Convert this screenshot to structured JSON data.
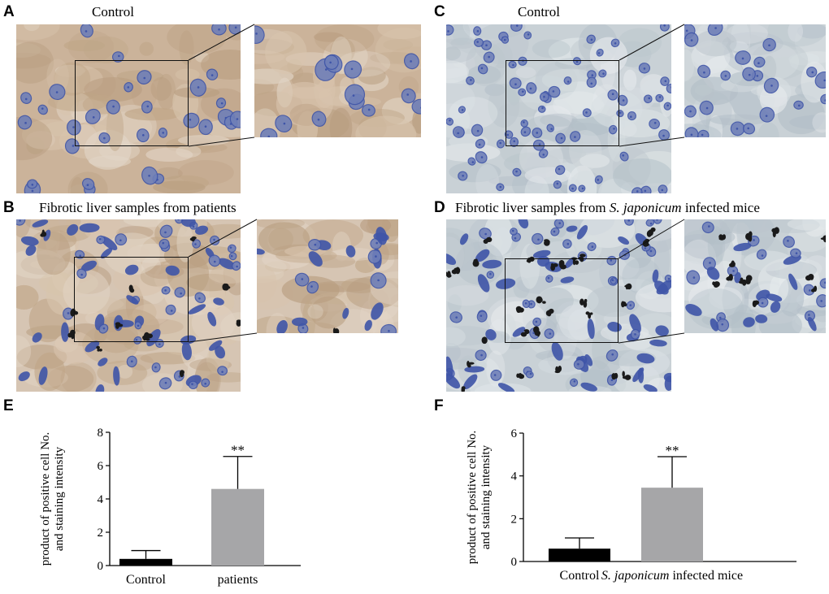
{
  "panels": {
    "A": {
      "letter": "A",
      "caption": "Control"
    },
    "B": {
      "letter": "B",
      "caption": "Fibrotic liver samples from patients"
    },
    "C": {
      "letter": "C",
      "caption": "Control"
    },
    "D": {
      "letter": "D",
      "caption_prefix": "Fibrotic liver samples from ",
      "caption_italic": "S. japonicum",
      "caption_suffix": " infected mice"
    },
    "E": {
      "letter": "E"
    },
    "F": {
      "letter": "F"
    }
  },
  "colors": {
    "human_bg": "#cbb39a",
    "mouse_bg": "#c9d1d6",
    "nucleus": "#6f7fb8",
    "nucleus_dark": "#3f55a8",
    "pigment": "#1a1a1a",
    "bar_control": "#000000",
    "bar_treated": "#a6a6a8"
  },
  "chart_data": [
    {
      "panel": "E",
      "type": "bar",
      "categories": [
        "Control",
        "patients"
      ],
      "values": [
        0.4,
        4.6
      ],
      "errors": [
        0.5,
        1.95
      ],
      "significance": [
        "",
        "**"
      ],
      "ylabel_line1": "product of positive cell No.",
      "ylabel_line2": "and staining intensity",
      "ylim": [
        0,
        8
      ],
      "yticks": [
        0,
        2,
        4,
        6,
        8
      ]
    },
    {
      "panel": "F",
      "type": "bar",
      "categories": [
        "Control",
        "S. japonicum infected mice"
      ],
      "category_italic": [
        "",
        "S. japonicum"
      ],
      "category_rest": [
        "Control",
        " infected mice"
      ],
      "values": [
        0.6,
        3.45
      ],
      "errors": [
        0.5,
        1.45
      ],
      "significance": [
        "",
        "**"
      ],
      "ylabel_line1": "product of positive cell No.",
      "ylabel_line2": "and staining intensity",
      "ylim": [
        0,
        6
      ],
      "yticks": [
        0,
        2,
        4,
        6
      ]
    }
  ]
}
